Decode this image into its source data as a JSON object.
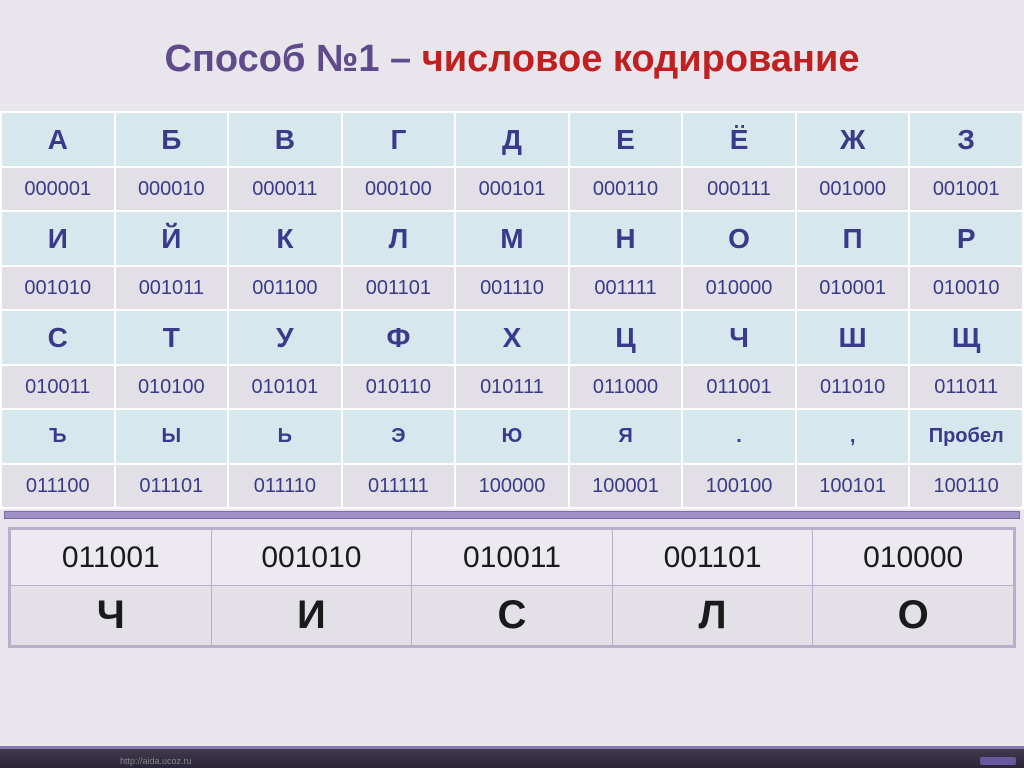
{
  "title": {
    "part1": "Способ №1 – ",
    "part2": "числовое кодирование"
  },
  "table": {
    "rows": [
      {
        "letters": [
          "А",
          "Б",
          "В",
          "Г",
          "Д",
          "Е",
          "Ё",
          "Ж",
          "З"
        ],
        "codes": [
          "000001",
          "000010",
          "000011",
          "000100",
          "000101",
          "000110",
          "000111",
          "001000",
          "001001"
        ]
      },
      {
        "letters": [
          "И",
          "Й",
          "К",
          "Л",
          "М",
          "Н",
          "О",
          "П",
          "Р"
        ],
        "codes": [
          "001010",
          "001011",
          "001100",
          "001101",
          "001110",
          "001111",
          "010000",
          "010001",
          "010010"
        ]
      },
      {
        "letters": [
          "С",
          "Т",
          "У",
          "Ф",
          "Х",
          "Ц",
          "Ч",
          "Ш",
          "Щ"
        ],
        "codes": [
          "010011",
          "010100",
          "010101",
          "010110",
          "010111",
          "011000",
          "011001",
          "011010",
          "011011"
        ]
      },
      {
        "letters": [
          "Ъ",
          "Ы",
          "Ь",
          "Э",
          "Ю",
          "Я",
          ".",
          ",",
          "Пробел"
        ],
        "codes": [
          "011100",
          "011101",
          "011110",
          "011111",
          "100000",
          "100001",
          "100100",
          "100101",
          "100110"
        ]
      }
    ]
  },
  "example": {
    "codes": [
      "011001",
      "001010",
      "010011",
      "001101",
      "010000"
    ],
    "letters": [
      "Ч",
      "И",
      "С",
      "Л",
      "О"
    ]
  },
  "footer_url": "http://aida.ucoz.ru",
  "colors": {
    "slide_bg": "#e8e5ec",
    "title_purple": "#5f4b8b",
    "title_red": "#c02020",
    "letter_bg": "#d6e7ed",
    "code_bg": "#e2e0e6",
    "cell_text": "#3a3a8a",
    "cell_border": "#ffffff",
    "example_border": "#b8b0c8",
    "example_code_bg": "#eceaf0",
    "example_letter_bg": "#e3e0e8"
  }
}
